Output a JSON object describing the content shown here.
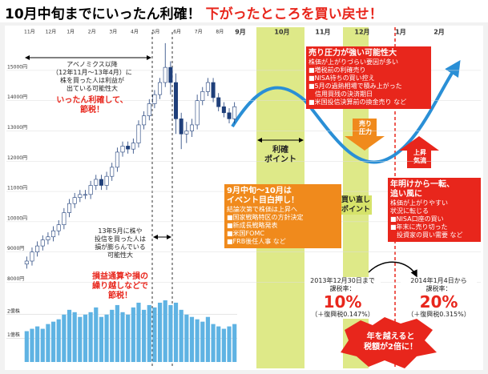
{
  "chart_data": {
    "type": "candlestick",
    "title": "10月中旬までにいったん利確！",
    "subtitle": "下がったところを買い戻せ！",
    "open": [
      8600,
      8700,
      9000,
      9200,
      9400,
      9500,
      9700,
      9900,
      10300,
      10600,
      10800,
      10900,
      10900,
      11200,
      11400,
      11200,
      11500,
      11800,
      12300,
      12500,
      12400,
      12600,
      13200,
      13500,
      13900,
      14200,
      14600,
      15100,
      14600,
      13400,
      12900,
      13000,
      13200,
      14000,
      14300,
      14600,
      14100,
      13800,
      13600,
      13400
    ],
    "high": [
      8850,
      9150,
      9350,
      9550,
      9650,
      9850,
      10050,
      10450,
      10750,
      10950,
      11050,
      11050,
      11350,
      11550,
      11550,
      11650,
      11950,
      12450,
      12650,
      12650,
      12750,
      13350,
      13650,
      14050,
      14350,
      14750,
      15900,
      15300,
      14900,
      13600,
      13300,
      13400,
      14200,
      14450,
      14750,
      14750,
      14250,
      13950,
      13750,
      13950
    ],
    "low": [
      8450,
      8550,
      8850,
      9050,
      9250,
      9350,
      9550,
      9750,
      10150,
      10450,
      10650,
      10750,
      10750,
      11050,
      11050,
      11050,
      11350,
      11650,
      12150,
      12250,
      12250,
      12450,
      13050,
      13350,
      13750,
      14050,
      14450,
      14200,
      12900,
      12400,
      12600,
      12800,
      13050,
      13850,
      14150,
      13950,
      13650,
      13450,
      13250,
      13250
    ],
    "close": [
      8700,
      9000,
      9200,
      9400,
      9500,
      9700,
      9900,
      10300,
      10600,
      10800,
      10900,
      10900,
      11200,
      11400,
      11200,
      11500,
      11800,
      12300,
      12500,
      12400,
      12600,
      13200,
      13500,
      13900,
      14200,
      14600,
      15100,
      14600,
      13400,
      12900,
      13000,
      13200,
      14000,
      14300,
      14600,
      14100,
      13800,
      13600,
      13400,
      13800
    ],
    "volume": [
      1.3,
      1.4,
      1.5,
      1.4,
      1.6,
      1.7,
      1.8,
      2.0,
      2.2,
      2.1,
      1.9,
      2.0,
      2.1,
      2.3,
      1.9,
      2.0,
      2.2,
      2.4,
      2.1,
      2.0,
      2.3,
      2.5,
      2.2,
      2.4,
      2.3,
      2.5,
      2.6,
      2.4,
      2.5,
      2.2,
      2.0,
      1.9,
      1.8,
      1.7,
      1.9,
      1.6,
      1.5,
      1.4,
      1.5,
      1.6
    ],
    "up_color": "#ffffff",
    "down_color": "#1f3f7a",
    "volume_color": "#5fb3e3",
    "ylim": [
      7800,
      16400
    ],
    "yticks": [
      {
        "value": 8000,
        "label": "8000円"
      },
      {
        "value": 9000,
        "label": "9000円"
      },
      {
        "value": 10000,
        "label": "10000円"
      },
      {
        "value": 11000,
        "label": "11000円"
      },
      {
        "value": 12000,
        "label": "12000円"
      },
      {
        "value": 13000,
        "label": "13000円"
      },
      {
        "value": 14000,
        "label": "14000円"
      },
      {
        "value": 15000,
        "label": "15000円"
      }
    ],
    "volume_ylim": [
      0,
      2.6
    ],
    "volume_yticks": [
      {
        "value": 1,
        "label": "1億株"
      },
      {
        "value": 2,
        "label": "2億株"
      }
    ],
    "months": [
      "11月",
      "12月",
      "1月",
      "2月",
      "3月",
      "4月",
      "5月",
      "6月",
      "7月",
      "8月"
    ],
    "forecast_months": [
      "9月",
      "10月",
      "11月",
      "12月",
      "1月",
      "2月"
    ],
    "grid": true
  },
  "annotations": {
    "a1": {
      "lines": [
        "アベノミクス以降",
        "（12年11月～13年4月）に",
        "株を買った人は利益が",
        "出ている可能性大"
      ],
      "red": [
        "いったん利確して、",
        "節税！"
      ]
    },
    "a2": {
      "lines": [
        "13年5月に株や",
        "投信を買った人は",
        "損が膨らんでいる",
        "可能性大"
      ],
      "red": [
        "損益通算や損の",
        "繰り越しなどで",
        "節税！"
      ]
    },
    "profit_point": [
      "利確",
      "ポイント"
    ],
    "rebuy_point": [
      "買い直し",
      "ポイント"
    ],
    "sell_box": {
      "title": "売り圧力が強い可能性大",
      "sub": "株価が上がりづらい要因が多い",
      "items": [
        "■増税前の利確売り",
        "■NISA待ちの買い控え",
        "■5月の過熱相場で積み上がった",
        "　信用買残の決済期日",
        "■米国投信決算前の換金売り など"
      ]
    },
    "sell_arrow": [
      "売り",
      "圧力"
    ],
    "rise_arrow": [
      "上昇",
      "気流"
    ],
    "event_box": {
      "title": [
        "9月中旬～10月は",
        "イベント目白押し！"
      ],
      "sub": "結論次第で株価は上昇へ",
      "items": [
        "■国家戦略特区の方針決定",
        "■新成長戦略発表",
        "■米国FOMC",
        "■FRB後任人事 など"
      ]
    },
    "newyear_box": {
      "title": [
        "年明けから一転、",
        "追い風に"
      ],
      "sub": [
        "株価が上がりやすい",
        "状況に転じる"
      ],
      "items": [
        "■NISA口座の買い",
        "■年末に売り切った",
        "　投資家の買い需要 など"
      ]
    },
    "tax1": {
      "lines": [
        "2013年12月30日まで",
        "課税率："
      ],
      "rate": "10%",
      "note": "（＋復興税0.147%）"
    },
    "tax2": {
      "lines": [
        "2014年1月4日から",
        "課税率："
      ],
      "rate": "20%",
      "note": "（＋復興税0.315%）"
    },
    "burst": [
      "年を越えると",
      "税額が2倍に！"
    ]
  }
}
